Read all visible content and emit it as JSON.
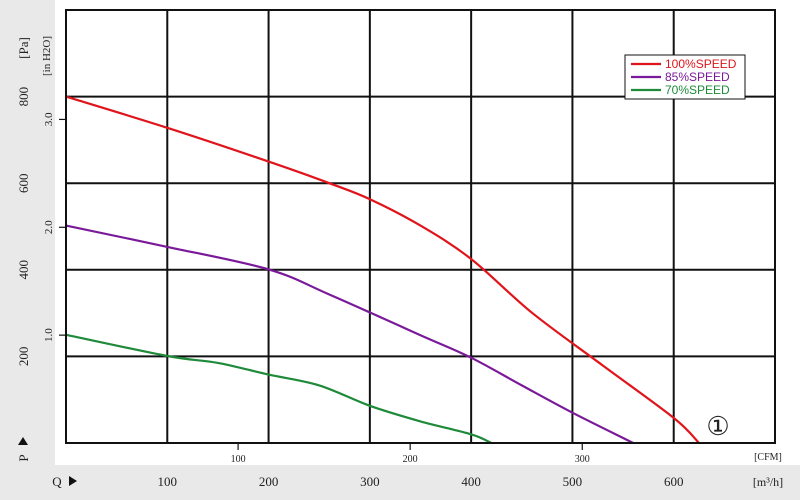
{
  "chart_data": {
    "type": "line",
    "axes": {
      "x_primary": {
        "unit_label": "[m³/h]",
        "ticks": [
          100,
          200,
          300,
          400,
          500,
          600
        ],
        "prefix": "Q"
      },
      "x_secondary": {
        "unit_label": "[CFM]",
        "ticks": [
          100,
          200,
          300
        ]
      },
      "y_primary": {
        "unit_label": "[Pa]",
        "ticks": [
          200,
          400,
          600,
          800
        ],
        "prefix": "P"
      },
      "y_secondary": {
        "unit_label": "[in H2O]",
        "ticks": [
          "1.0",
          "2.0",
          "3.0"
        ]
      },
      "xlim": [
        0,
        700
      ],
      "ylim": [
        0,
        1000
      ],
      "grid": true
    },
    "series": [
      {
        "name": "100%SPEED",
        "color": "#e0151b",
        "points": [
          [
            0,
            800
          ],
          [
            100,
            728
          ],
          [
            200,
            650
          ],
          [
            260,
            600
          ],
          [
            300,
            563
          ],
          [
            350,
            502
          ],
          [
            400,
            425
          ],
          [
            460,
            301
          ],
          [
            530,
            179
          ],
          [
            600,
            58
          ],
          [
            625,
            0
          ]
        ]
      },
      {
        "name": "85%SPEED",
        "color": "#7a1a9a",
        "points": [
          [
            0,
            502
          ],
          [
            100,
            453
          ],
          [
            200,
            401
          ],
          [
            260,
            343
          ],
          [
            350,
            249
          ],
          [
            400,
            197
          ],
          [
            450,
            133
          ],
          [
            500,
            70
          ],
          [
            560,
            0
          ]
        ]
      },
      {
        "name": "70%SPEED",
        "color": "#1e8a3a",
        "points": [
          [
            0,
            250
          ],
          [
            100,
            201
          ],
          [
            150,
            185
          ],
          [
            200,
            158
          ],
          [
            250,
            133
          ],
          [
            300,
            86
          ],
          [
            350,
            50
          ],
          [
            400,
            20
          ],
          [
            420,
            0
          ]
        ]
      }
    ],
    "legend_position": "top-right",
    "annotation": "①"
  }
}
